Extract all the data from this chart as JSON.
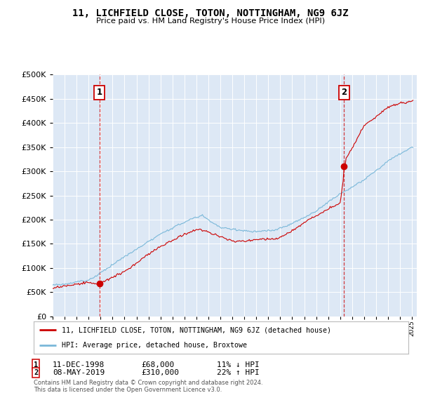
{
  "title": "11, LICHFIELD CLOSE, TOTON, NOTTINGHAM, NG9 6JZ",
  "subtitle": "Price paid vs. HM Land Registry's House Price Index (HPI)",
  "hpi_label": "HPI: Average price, detached house, Broxtowe",
  "property_label": "11, LICHFIELD CLOSE, TOTON, NOTTINGHAM, NG9 6JZ (detached house)",
  "transaction1_date": "11-DEC-1998",
  "transaction1_price": 68000,
  "transaction1_hpi_text": "11% ↓ HPI",
  "transaction2_date": "08-MAY-2019",
  "transaction2_price": 310000,
  "transaction2_hpi_text": "22% ↑ HPI",
  "footer": "Contains HM Land Registry data © Crown copyright and database right 2024.\nThis data is licensed under the Open Government Licence v3.0.",
  "hpi_color": "#7ab8d9",
  "price_color": "#cc0000",
  "vline_color": "#cc0000",
  "plot_bg": "#dde8f5",
  "grid_color": "#ffffff",
  "ylim": [
    0,
    500000
  ],
  "yticks": [
    0,
    50000,
    100000,
    150000,
    200000,
    250000,
    300000,
    350000,
    400000,
    450000,
    500000
  ],
  "xstart": 1995,
  "xend": 2025
}
